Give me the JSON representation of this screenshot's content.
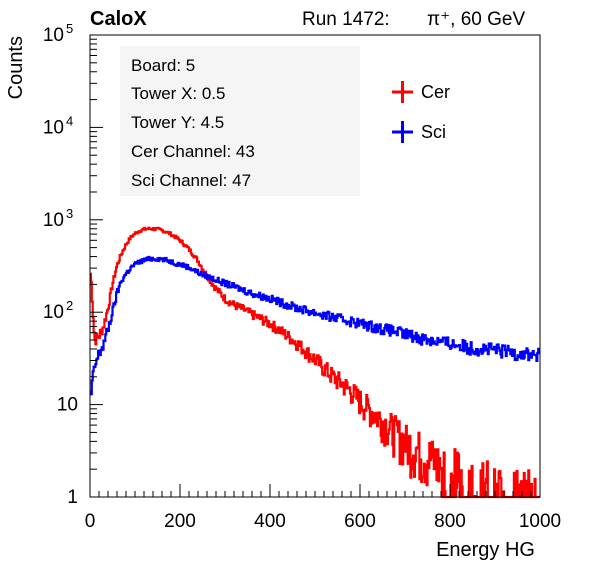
{
  "header": {
    "experiment": "CaloX",
    "run_label": "Run 1472:",
    "beam_label": "π⁺, 60 GeV"
  },
  "info_box": {
    "lines": [
      "Board: 5",
      "Tower X: 0.5",
      "Tower Y: 4.5",
      "Cer Channel: 43",
      "Sci Channel: 47"
    ]
  },
  "colors": {
    "cer": "#ff0000",
    "sci": "#0000ff",
    "axis": "#000000",
    "background": "#ffffff"
  },
  "chart_data": {
    "type": "line",
    "xlabel": "Energy HG",
    "ylabel": "Counts",
    "xlim": [
      0,
      1000
    ],
    "ylim": [
      1,
      100000
    ],
    "yscale": "log",
    "grid": false,
    "legend_position": "top-right",
    "x_ticks": [
      "0",
      "200",
      "400",
      "600",
      "800",
      "1000"
    ],
    "y_ticks": [
      {
        "base": "1",
        "exp": ""
      },
      {
        "base": "10",
        "exp": ""
      },
      {
        "base": "10",
        "exp": "2"
      },
      {
        "base": "10",
        "exp": "3"
      },
      {
        "base": "10",
        "exp": "4"
      },
      {
        "base": "10",
        "exp": "5"
      }
    ],
    "x": [
      2,
      10,
      20,
      30,
      40,
      50,
      60,
      70,
      80,
      90,
      100,
      110,
      120,
      130,
      140,
      150,
      160,
      170,
      180,
      190,
      200,
      210,
      220,
      230,
      240,
      250,
      260,
      270,
      280,
      290,
      300,
      320,
      340,
      360,
      380,
      400,
      420,
      440,
      460,
      480,
      500,
      520,
      540,
      560,
      580,
      600,
      620,
      640,
      660,
      680,
      700,
      720,
      740,
      760,
      780,
      800,
      820,
      840,
      860,
      880,
      900,
      920,
      940,
      960,
      980,
      1000
    ],
    "series": [
      {
        "name": "Cer",
        "values": [
          260,
          50,
          55,
          70,
          110,
          200,
          320,
          430,
          540,
          640,
          710,
          760,
          790,
          800,
          800,
          790,
          770,
          740,
          700,
          650,
          600,
          540,
          480,
          420,
          360,
          300,
          250,
          210,
          180,
          160,
          140,
          120,
          108,
          95,
          85,
          75,
          65,
          55,
          46,
          38,
          31,
          25,
          20,
          17,
          14,
          11,
          9,
          7.5,
          6,
          5,
          4,
          3.5,
          3,
          2.6,
          2.2,
          2,
          1.8,
          1.6,
          1.5,
          1.4,
          1.3,
          1.2,
          1.2,
          1.1,
          1.1,
          1
        ]
      },
      {
        "name": "Sci",
        "values": [
          12,
          25,
          35,
          45,
          65,
          100,
          160,
          220,
          260,
          300,
          330,
          350,
          365,
          375,
          380,
          380,
          375,
          365,
          355,
          340,
          330,
          320,
          305,
          290,
          270,
          255,
          245,
          235,
          225,
          215,
          205,
          190,
          175,
          160,
          150,
          140,
          130,
          120,
          112,
          105,
          99,
          93,
          88,
          84,
          80,
          76,
          72,
          68,
          65,
          62,
          58,
          55,
          52,
          50,
          48,
          46,
          44,
          42,
          41,
          40,
          39,
          38,
          37,
          36,
          35,
          34
        ]
      }
    ]
  }
}
